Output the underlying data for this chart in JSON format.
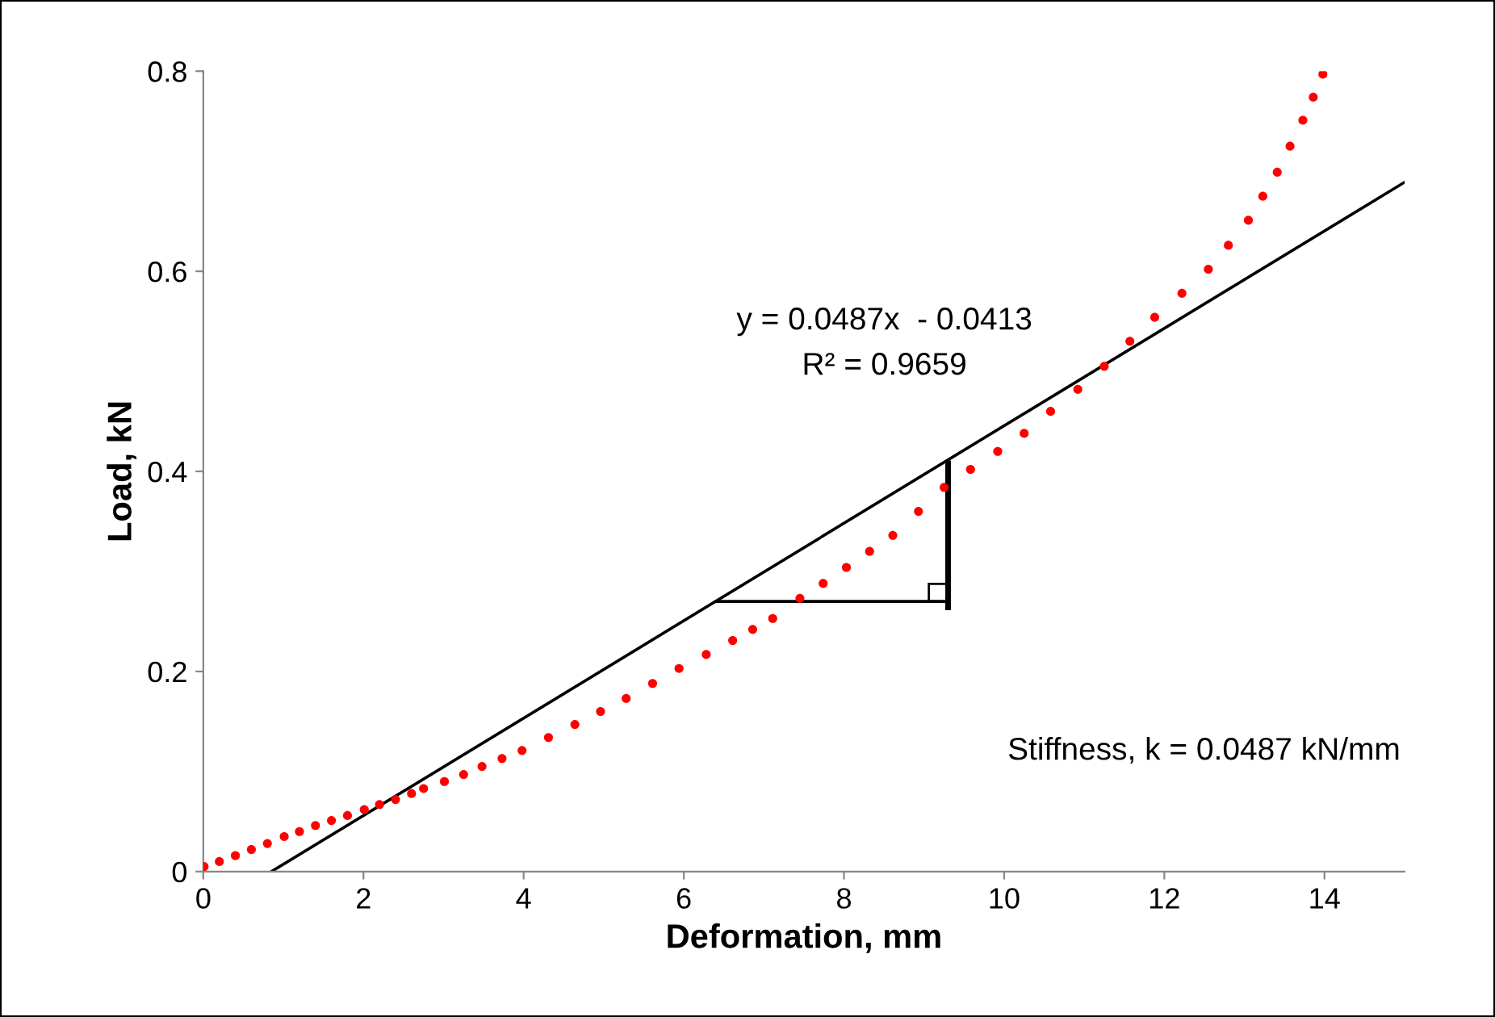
{
  "chart_data": {
    "type": "scatter",
    "xlabel": "Deformation, mm",
    "ylabel": "Load, kN",
    "xlim": [
      0,
      15
    ],
    "xticks": [
      0,
      2,
      4,
      6,
      8,
      10,
      12,
      14
    ],
    "ylim": [
      0,
      0.8
    ],
    "yticks": [
      0,
      0.2,
      0.4,
      0.6,
      0.8
    ],
    "grid": false,
    "legend": false,
    "marker": "circle",
    "series": [
      {
        "color": "#ff0000",
        "x": [
          0.01,
          0.2,
          0.4,
          0.6,
          0.8,
          1.01,
          1.2,
          1.4,
          1.6,
          1.8,
          2.01,
          2.2,
          2.4,
          2.6,
          2.75,
          3.01,
          3.25,
          3.48,
          3.73,
          3.98,
          4.31,
          4.64,
          4.96,
          5.28,
          5.61,
          5.94,
          6.28,
          6.61,
          6.86,
          7.11,
          7.45,
          7.74,
          8.03,
          8.32,
          8.61,
          8.93,
          9.25,
          9.58,
          9.92,
          10.25,
          10.58,
          10.92,
          11.25,
          11.57,
          11.88,
          12.22,
          12.55,
          12.8,
          13.05,
          13.23,
          13.41,
          13.57,
          13.73,
          13.86,
          13.98
        ],
        "values": [
          0.005,
          0.01,
          0.016,
          0.022,
          0.028,
          0.035,
          0.04,
          0.046,
          0.051,
          0.056,
          0.062,
          0.067,
          0.072,
          0.078,
          0.083,
          0.09,
          0.097,
          0.105,
          0.113,
          0.121,
          0.134,
          0.147,
          0.16,
          0.173,
          0.188,
          0.203,
          0.217,
          0.231,
          0.242,
          0.253,
          0.273,
          0.288,
          0.304,
          0.32,
          0.336,
          0.36,
          0.384,
          0.402,
          0.42,
          0.438,
          0.46,
          0.482,
          0.505,
          0.53,
          0.554,
          0.578,
          0.602,
          0.626,
          0.651,
          0.675,
          0.699,
          0.725,
          0.751,
          0.774,
          0.797
        ]
      },
      {
        "type": "line",
        "color": "#000000",
        "marker": "none",
        "x": [
          0.85,
          15
        ],
        "values": [
          0,
          0.689
        ]
      }
    ],
    "annotations": [
      "y = 0.0487x  - 0.0413",
      "R² = 0.9659",
      "Stiffness, k = 0.0487 kN/mm"
    ]
  }
}
